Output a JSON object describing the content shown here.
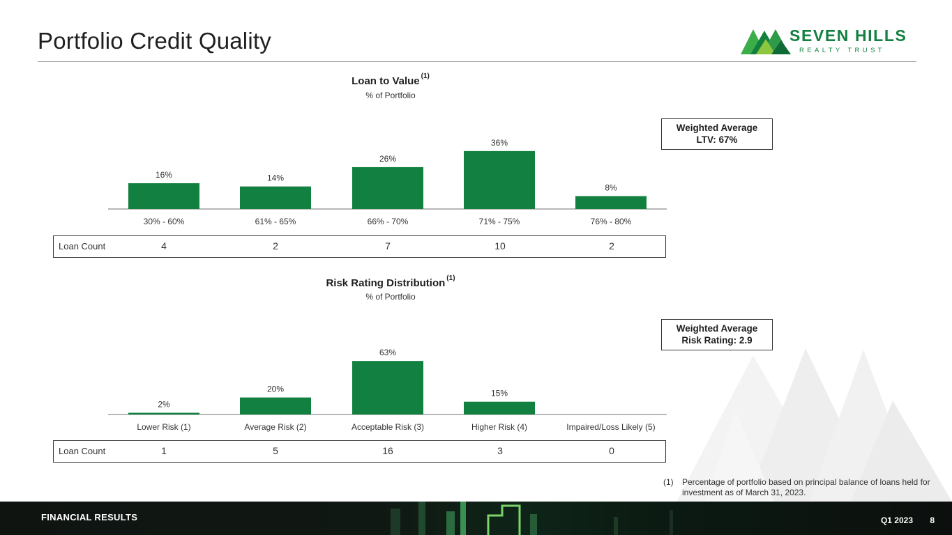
{
  "page": {
    "title": "Portfolio Credit Quality"
  },
  "logo": {
    "name": "SEVEN HILLS",
    "sub": "REALTY TRUST"
  },
  "colors": {
    "bar": "#128040",
    "brand": "#148040"
  },
  "ltv": {
    "title": "Loan to Value",
    "footnote_ref": "(1)",
    "subtitle": "% of Portfolio",
    "weighted_line1": "Weighted Average",
    "weighted_line2": "LTV: 67%",
    "count_label": "Loan Count"
  },
  "risk": {
    "title": "Risk Rating Distribution",
    "footnote_ref": "(1)",
    "subtitle": "% of Portfolio",
    "weighted_line1": "Weighted Average",
    "weighted_line2": "Risk Rating: 2.9",
    "count_label": "Loan Count"
  },
  "chart_data": [
    {
      "type": "bar",
      "title": "Loan to Value",
      "subtitle": "% of Portfolio",
      "categories": [
        "30% - 60%",
        "61% - 65%",
        "66% - 70%",
        "71% - 75%",
        "76% - 80%"
      ],
      "values": [
        16,
        14,
        26,
        36,
        8
      ],
      "data_labels": [
        "16%",
        "14%",
        "26%",
        "36%",
        "8%"
      ],
      "loan_counts": [
        "4",
        "2",
        "7",
        "10",
        "2"
      ],
      "ylim": [
        0,
        40
      ],
      "grid": false,
      "legend": "none"
    },
    {
      "type": "bar",
      "title": "Risk Rating Distribution",
      "subtitle": "% of Portfolio",
      "categories": [
        "Lower Risk (1)",
        "Average Risk (2)",
        "Acceptable Risk (3)",
        "Higher Risk (4)",
        "Impaired/Loss Likely (5)"
      ],
      "values": [
        2,
        20,
        63,
        15,
        0
      ],
      "data_labels": [
        "2%",
        "20%",
        "63%",
        "15%",
        ""
      ],
      "loan_counts": [
        "1",
        "5",
        "16",
        "3",
        "0"
      ],
      "ylim": [
        0,
        70
      ],
      "grid": false,
      "legend": "none"
    }
  ],
  "footnote": {
    "num": "(1)",
    "text": "Percentage of portfolio based on principal balance of loans held for investment as of March 31, 2023."
  },
  "footer": {
    "section": "FINANCIAL RESULTS",
    "period": "Q1 2023",
    "page_number": "8"
  }
}
